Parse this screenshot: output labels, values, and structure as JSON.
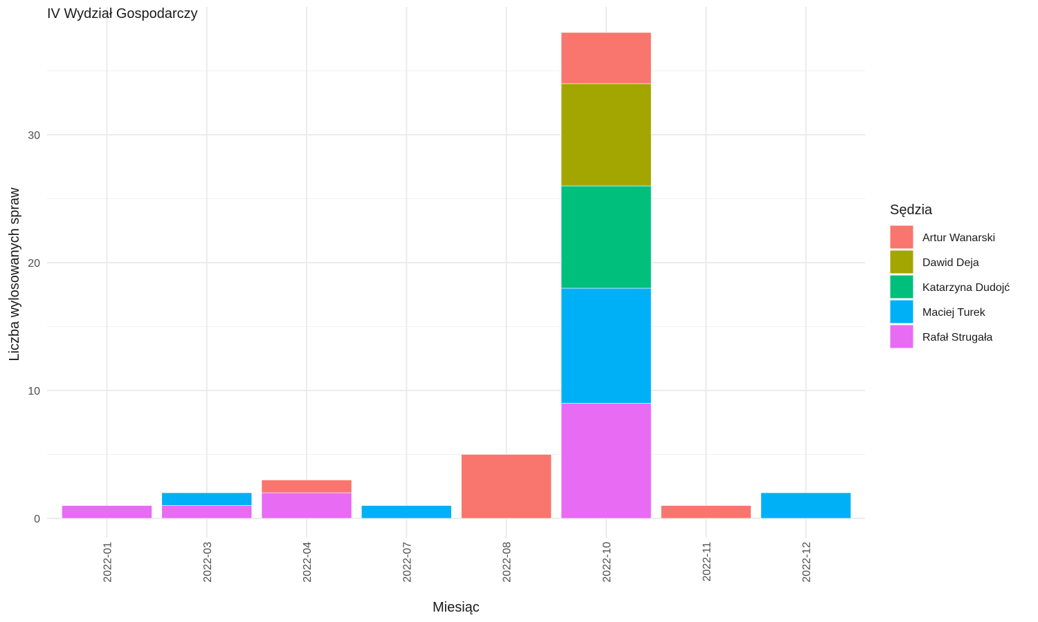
{
  "chart_data": {
    "type": "bar",
    "stacked": true,
    "title": "IV Wydział Gospodarczy",
    "xlabel": "Miesiąc",
    "ylabel": "Liczba wylosowanych spraw",
    "ylim": [
      0,
      40
    ],
    "yticks": [
      0,
      10,
      20,
      30
    ],
    "grid": true,
    "legend_position": "right",
    "legend_title": "Sędzia",
    "categories": [
      "2022-01",
      "2022-03",
      "2022-04",
      "2022-07",
      "2022-08",
      "2022-10",
      "2022-11",
      "2022-12"
    ],
    "series": [
      {
        "name": "Artur Wanarski",
        "color": "#F8766D",
        "values": [
          0,
          0,
          1,
          0,
          5,
          4,
          1,
          0
        ]
      },
      {
        "name": "Dawid Deja",
        "color": "#A3A500",
        "values": [
          0,
          0,
          0,
          0,
          0,
          8,
          0,
          0
        ]
      },
      {
        "name": "Katarzyna Dudojć",
        "color": "#00BF7D",
        "values": [
          0,
          0,
          0,
          0,
          0,
          8,
          0,
          0
        ]
      },
      {
        "name": "Maciej Turek",
        "color": "#00B0F6",
        "values": [
          0,
          1,
          0,
          1,
          0,
          9,
          0,
          2
        ]
      },
      {
        "name": "Rafał Strugała",
        "color": "#E76BF3",
        "values": [
          1,
          1,
          2,
          0,
          0,
          9,
          0,
          0
        ]
      }
    ]
  }
}
